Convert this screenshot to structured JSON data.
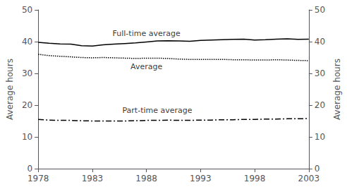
{
  "chart_data": {
    "type": "line",
    "x": [
      1978,
      1979,
      1980,
      1981,
      1982,
      1983,
      1984,
      1985,
      1986,
      1987,
      1988,
      1989,
      1990,
      1991,
      1992,
      1993,
      1994,
      1995,
      1996,
      1997,
      1998,
      1999,
      2000,
      2001,
      2002,
      2003
    ],
    "series": [
      {
        "color": "#000000",
        "line_style": "solid",
        "values": [
          39.8,
          39.5,
          39.3,
          39.2,
          38.7,
          38.6,
          39.0,
          39.2,
          39.4,
          39.6,
          39.9,
          40.2,
          40.3,
          40.2,
          40.1,
          40.4,
          40.5,
          40.6,
          40.7,
          40.8,
          40.5,
          40.6,
          40.8,
          40.9,
          40.7,
          40.8
        ]
      },
      {
        "color": "#000000",
        "line_style": "dotted",
        "values": [
          36.0,
          35.6,
          35.4,
          35.2,
          35.0,
          34.9,
          35.0,
          34.9,
          34.8,
          34.7,
          34.8,
          34.8,
          34.7,
          34.5,
          34.4,
          34.4,
          34.4,
          34.4,
          34.3,
          34.3,
          34.2,
          34.2,
          34.3,
          34.2,
          34.1,
          34.0
        ]
      },
      {
        "color": "#000000",
        "line_style": "dashdot",
        "values": [
          15.5,
          15.3,
          15.2,
          15.2,
          15.1,
          15.0,
          15.0,
          15.0,
          15.0,
          15.1,
          15.2,
          15.2,
          15.3,
          15.2,
          15.2,
          15.3,
          15.3,
          15.4,
          15.4,
          15.5,
          15.5,
          15.6,
          15.6,
          15.7,
          15.7,
          15.8
        ]
      }
    ],
    "annotations": [
      {
        "text": "Full-time average",
        "x": 1988,
        "y": 41.2
      },
      {
        "text": "Average",
        "x": 1988,
        "y": 33.5
      },
      {
        "text": "Part-time average",
        "x": 1989,
        "y": 16.8
      }
    ],
    "ylabel": "Average hours",
    "y2label": "Average hours",
    "xlim": [
      1978,
      2003
    ],
    "xticks": [
      1978,
      1983,
      1988,
      1993,
      1998,
      2003
    ],
    "ylim": [
      0,
      50
    ],
    "yticks": [
      0,
      10,
      20,
      30,
      40,
      50
    ],
    "y2lim": [
      0,
      50
    ],
    "y2ticks": [
      0,
      10,
      20,
      30,
      40,
      50
    ],
    "grid": false
  }
}
